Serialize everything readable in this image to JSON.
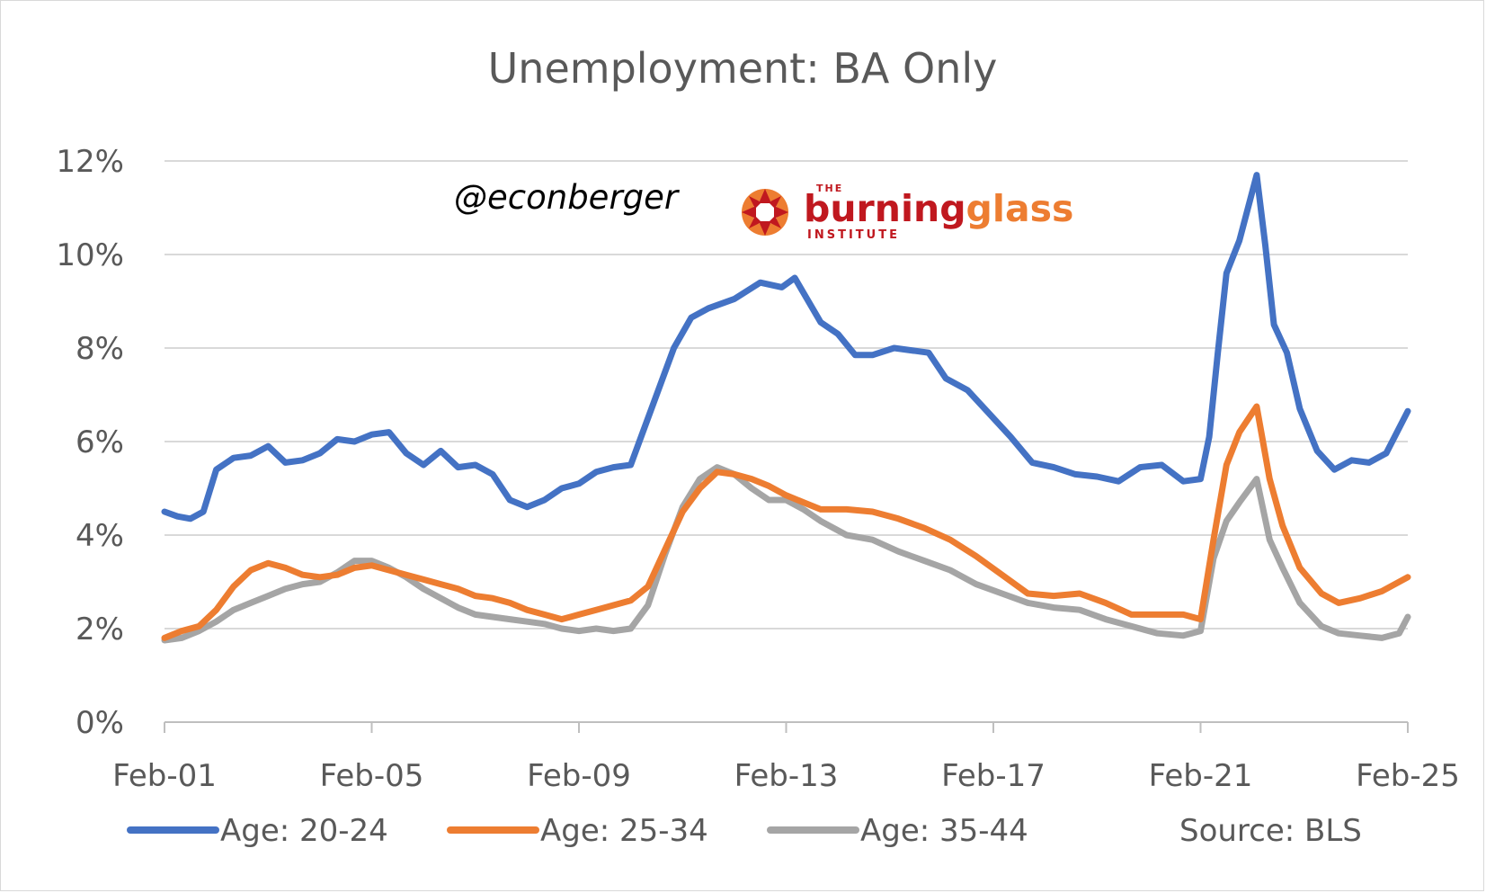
{
  "chart_data": {
    "type": "line",
    "title": "Unemployment: BA Only",
    "xlabel": "",
    "ylabel": "",
    "x_tick_labels": [
      "Feb-01",
      "Feb-05",
      "Feb-09",
      "Feb-13",
      "Feb-17",
      "Feb-21",
      "Feb-25"
    ],
    "x_range": [
      "2001-02",
      "2025-02"
    ],
    "y_tick_labels": [
      "0%",
      "2%",
      "4%",
      "6%",
      "8%",
      "10%",
      "12%"
    ],
    "ylim": [
      0,
      12
    ],
    "grid": true,
    "legend_position": "bottom",
    "source_note": "Source: BLS",
    "watermark": {
      "handle": "@econberger",
      "logo_text": "burningglass",
      "logo_small_top": "THE",
      "logo_small_bottom": "INSTITUTE"
    },
    "series": [
      {
        "name": "Age: 20-24",
        "color": "#4472C4",
        "points": [
          [
            "2001-02",
            4.5
          ],
          [
            "2001-05",
            4.4
          ],
          [
            "2001-08",
            4.35
          ],
          [
            "2001-11",
            4.5
          ],
          [
            "2002-02",
            5.4
          ],
          [
            "2002-06",
            5.65
          ],
          [
            "2002-10",
            5.7
          ],
          [
            "2003-02",
            5.9
          ],
          [
            "2003-06",
            5.55
          ],
          [
            "2003-10",
            5.6
          ],
          [
            "2004-02",
            5.75
          ],
          [
            "2004-06",
            6.05
          ],
          [
            "2004-10",
            6.0
          ],
          [
            "2005-02",
            6.15
          ],
          [
            "2005-06",
            6.2
          ],
          [
            "2005-10",
            5.75
          ],
          [
            "2006-02",
            5.5
          ],
          [
            "2006-06",
            5.8
          ],
          [
            "2006-10",
            5.45
          ],
          [
            "2007-02",
            5.5
          ],
          [
            "2007-06",
            5.3
          ],
          [
            "2007-10",
            4.75
          ],
          [
            "2008-02",
            4.6
          ],
          [
            "2008-06",
            4.75
          ],
          [
            "2008-10",
            5.0
          ],
          [
            "2009-02",
            5.1
          ],
          [
            "2009-06",
            5.35
          ],
          [
            "2009-10",
            5.45
          ],
          [
            "2010-02",
            5.5
          ],
          [
            "2010-04",
            6.0
          ],
          [
            "2010-08",
            7.0
          ],
          [
            "2010-12",
            8.0
          ],
          [
            "2011-04",
            8.65
          ],
          [
            "2011-08",
            8.85
          ],
          [
            "2012-02",
            9.05
          ],
          [
            "2012-08",
            9.4
          ],
          [
            "2013-01",
            9.3
          ],
          [
            "2013-04",
            9.5
          ],
          [
            "2013-10",
            8.55
          ],
          [
            "2014-02",
            8.3
          ],
          [
            "2014-06",
            7.85
          ],
          [
            "2014-10",
            7.85
          ],
          [
            "2015-03",
            8.0
          ],
          [
            "2015-07",
            7.95
          ],
          [
            "2015-11",
            7.9
          ],
          [
            "2016-03",
            7.35
          ],
          [
            "2016-08",
            7.1
          ],
          [
            "2017-01",
            6.6
          ],
          [
            "2017-06",
            6.1
          ],
          [
            "2017-11",
            5.55
          ],
          [
            "2018-04",
            5.45
          ],
          [
            "2018-09",
            5.3
          ],
          [
            "2019-02",
            5.25
          ],
          [
            "2019-07",
            5.15
          ],
          [
            "2019-12",
            5.45
          ],
          [
            "2020-05",
            5.5
          ],
          [
            "2020-10",
            5.15
          ],
          [
            "2021-02",
            5.2
          ],
          [
            "2021-04",
            6.1
          ],
          [
            "2021-06",
            7.9
          ],
          [
            "2021-08",
            9.6
          ],
          [
            "2021-11",
            10.3
          ],
          [
            "2022-01",
            11.0
          ],
          [
            "2022-03",
            11.7
          ],
          [
            "2022-05",
            10.2
          ],
          [
            "2022-07",
            8.5
          ],
          [
            "2022-10",
            7.9
          ],
          [
            "2023-01",
            6.7
          ],
          [
            "2023-05",
            5.8
          ],
          [
            "2023-09",
            5.4
          ],
          [
            "2024-01",
            5.6
          ],
          [
            "2024-05",
            5.55
          ],
          [
            "2024-09",
            5.75
          ],
          [
            "2025-02",
            6.65
          ]
        ]
      },
      {
        "name": "Age: 25-34",
        "color": "#ED7D31",
        "points": [
          [
            "2001-02",
            1.8
          ],
          [
            "2001-06",
            1.95
          ],
          [
            "2001-10",
            2.05
          ],
          [
            "2002-02",
            2.4
          ],
          [
            "2002-06",
            2.9
          ],
          [
            "2002-10",
            3.25
          ],
          [
            "2003-02",
            3.4
          ],
          [
            "2003-06",
            3.3
          ],
          [
            "2003-10",
            3.15
          ],
          [
            "2004-02",
            3.1
          ],
          [
            "2004-06",
            3.15
          ],
          [
            "2004-10",
            3.3
          ],
          [
            "2005-02",
            3.35
          ],
          [
            "2005-06",
            3.25
          ],
          [
            "2005-10",
            3.15
          ],
          [
            "2006-02",
            3.05
          ],
          [
            "2006-06",
            2.95
          ],
          [
            "2006-10",
            2.85
          ],
          [
            "2007-02",
            2.7
          ],
          [
            "2007-06",
            2.65
          ],
          [
            "2007-10",
            2.55
          ],
          [
            "2008-02",
            2.4
          ],
          [
            "2008-06",
            2.3
          ],
          [
            "2008-10",
            2.2
          ],
          [
            "2009-02",
            2.3
          ],
          [
            "2009-06",
            2.4
          ],
          [
            "2009-10",
            2.5
          ],
          [
            "2010-02",
            2.6
          ],
          [
            "2010-06",
            2.9
          ],
          [
            "2010-10",
            3.7
          ],
          [
            "2011-02",
            4.5
          ],
          [
            "2011-06",
            5.0
          ],
          [
            "2011-10",
            5.35
          ],
          [
            "2012-02",
            5.3
          ],
          [
            "2012-06",
            5.2
          ],
          [
            "2012-10",
            5.05
          ],
          [
            "2013-02",
            4.85
          ],
          [
            "2013-06",
            4.7
          ],
          [
            "2013-10",
            4.55
          ],
          [
            "2014-04",
            4.55
          ],
          [
            "2014-10",
            4.5
          ],
          [
            "2015-04",
            4.35
          ],
          [
            "2015-10",
            4.15
          ],
          [
            "2016-04",
            3.9
          ],
          [
            "2016-10",
            3.55
          ],
          [
            "2017-04",
            3.15
          ],
          [
            "2017-10",
            2.75
          ],
          [
            "2018-04",
            2.7
          ],
          [
            "2018-10",
            2.75
          ],
          [
            "2019-04",
            2.55
          ],
          [
            "2019-10",
            2.3
          ],
          [
            "2020-04",
            2.3
          ],
          [
            "2020-10",
            2.3
          ],
          [
            "2021-02",
            2.2
          ],
          [
            "2021-05",
            3.9
          ],
          [
            "2021-08",
            5.5
          ],
          [
            "2021-11",
            6.2
          ],
          [
            "2022-03",
            6.75
          ],
          [
            "2022-06",
            5.2
          ],
          [
            "2022-09",
            4.2
          ],
          [
            "2023-01",
            3.3
          ],
          [
            "2023-06",
            2.75
          ],
          [
            "2023-10",
            2.55
          ],
          [
            "2024-03",
            2.65
          ],
          [
            "2024-08",
            2.8
          ],
          [
            "2025-02",
            3.1
          ]
        ]
      },
      {
        "name": "Age: 35-44",
        "color": "#A5A5A5",
        "points": [
          [
            "2001-02",
            1.75
          ],
          [
            "2001-06",
            1.8
          ],
          [
            "2001-10",
            1.95
          ],
          [
            "2002-02",
            2.15
          ],
          [
            "2002-06",
            2.4
          ],
          [
            "2002-10",
            2.55
          ],
          [
            "2003-02",
            2.7
          ],
          [
            "2003-06",
            2.85
          ],
          [
            "2003-10",
            2.95
          ],
          [
            "2004-02",
            3.0
          ],
          [
            "2004-06",
            3.2
          ],
          [
            "2004-10",
            3.45
          ],
          [
            "2005-02",
            3.45
          ],
          [
            "2005-06",
            3.3
          ],
          [
            "2005-10",
            3.1
          ],
          [
            "2006-02",
            2.85
          ],
          [
            "2006-06",
            2.65
          ],
          [
            "2006-10",
            2.45
          ],
          [
            "2007-02",
            2.3
          ],
          [
            "2007-06",
            2.25
          ],
          [
            "2007-10",
            2.2
          ],
          [
            "2008-02",
            2.15
          ],
          [
            "2008-06",
            2.1
          ],
          [
            "2008-10",
            2.0
          ],
          [
            "2009-02",
            1.95
          ],
          [
            "2009-06",
            2.0
          ],
          [
            "2009-10",
            1.95
          ],
          [
            "2010-02",
            2.0
          ],
          [
            "2010-06",
            2.5
          ],
          [
            "2010-10",
            3.6
          ],
          [
            "2011-02",
            4.6
          ],
          [
            "2011-06",
            5.2
          ],
          [
            "2011-10",
            5.45
          ],
          [
            "2012-02",
            5.3
          ],
          [
            "2012-06",
            5.0
          ],
          [
            "2012-10",
            4.75
          ],
          [
            "2013-02",
            4.75
          ],
          [
            "2013-06",
            4.55
          ],
          [
            "2013-10",
            4.3
          ],
          [
            "2014-04",
            4.0
          ],
          [
            "2014-10",
            3.9
          ],
          [
            "2015-04",
            3.65
          ],
          [
            "2015-10",
            3.45
          ],
          [
            "2016-04",
            3.25
          ],
          [
            "2016-10",
            2.95
          ],
          [
            "2017-04",
            2.75
          ],
          [
            "2017-10",
            2.55
          ],
          [
            "2018-04",
            2.45
          ],
          [
            "2018-10",
            2.4
          ],
          [
            "2019-04",
            2.2
          ],
          [
            "2019-10",
            2.05
          ],
          [
            "2020-04",
            1.9
          ],
          [
            "2020-10",
            1.85
          ],
          [
            "2021-02",
            1.95
          ],
          [
            "2021-05",
            3.5
          ],
          [
            "2021-08",
            4.3
          ],
          [
            "2021-11",
            4.7
          ],
          [
            "2022-03",
            5.2
          ],
          [
            "2022-06",
            3.9
          ],
          [
            "2022-09",
            3.3
          ],
          [
            "2023-01",
            2.55
          ],
          [
            "2023-06",
            2.05
          ],
          [
            "2023-10",
            1.9
          ],
          [
            "2024-03",
            1.85
          ],
          [
            "2024-08",
            1.8
          ],
          [
            "2024-12",
            1.9
          ],
          [
            "2025-02",
            2.25
          ]
        ]
      }
    ]
  }
}
